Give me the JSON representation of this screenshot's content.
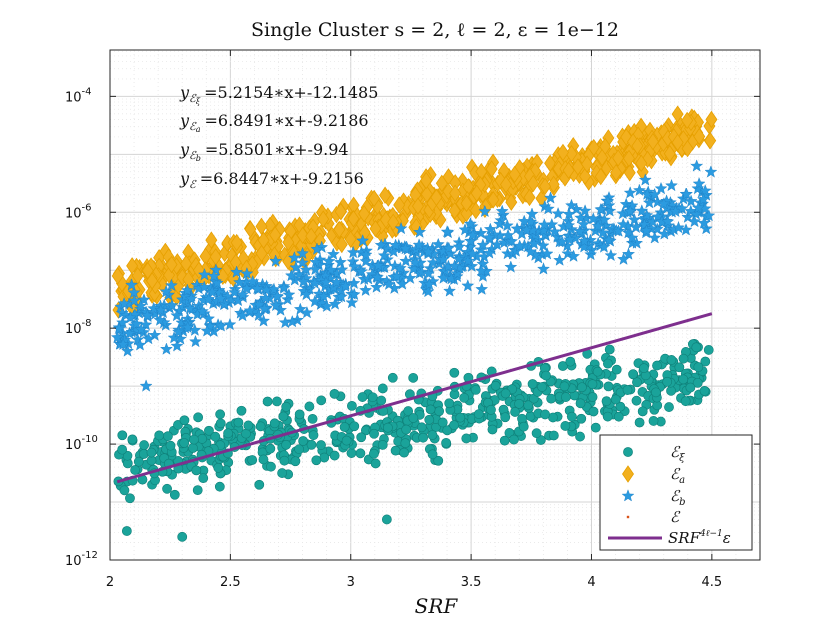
{
  "chart_data": {
    "type": "scatter",
    "title": "Single Cluster s = 2, ℓ = 2, ε = 1e−12",
    "xlabel": "SRF",
    "ylabel": "",
    "xlim": [
      2,
      4.7
    ],
    "ylim_log10": [
      -12,
      -3.2
    ],
    "y_scale": "log",
    "x_ticks": [
      2,
      2.5,
      3,
      3.5,
      4,
      4.5
    ],
    "x_tick_labels": [
      "2",
      "2.5",
      "3",
      "3.5",
      "4",
      "4.5"
    ],
    "y_ticks_log10": [
      -12,
      -10,
      -8,
      -6,
      -4
    ],
    "y_tick_labels": [
      {
        "base": "10",
        "exp": "-12"
      },
      {
        "base": "10",
        "exp": "-10"
      },
      {
        "base": "10",
        "exp": "-8"
      },
      {
        "base": "10",
        "exp": "-6"
      },
      {
        "base": "10",
        "exp": "-4"
      }
    ],
    "grid": true,
    "legend_position": "bottom-right",
    "fits": [
      {
        "label": "yₑξ =5.2154*x+-12.1485",
        "sub": "ξ",
        "text": "=5.2154∗x+-12.1485",
        "slope": 5.2154,
        "intercept": -12.1485
      },
      {
        "label": "yₑa =6.8491*x+-9.2186",
        "sub": "a",
        "text": "=6.8491∗x+-9.2186",
        "slope": 6.8491,
        "intercept": -9.2186
      },
      {
        "label": "yₑb =5.8501*x+-9.94",
        "sub": "b",
        "text": "=5.8501∗x+-9.94",
        "slope": 5.8501,
        "intercept": -9.94
      },
      {
        "label": "yₑ =6.8447*x+-9.2156",
        "sub": "",
        "text": "=6.8447∗x+-9.2156",
        "slope": 6.8447,
        "intercept": -9.2156
      }
    ],
    "series": [
      {
        "name": "E_xi",
        "legend": "ℰξ",
        "marker": "circle",
        "color": "#1aa39a",
        "x_range": [
          2.03,
          4.5
        ],
        "log10_start": -10.35,
        "log10_end": -8.8,
        "spread": 0.45,
        "count": 640,
        "outliers": [
          [
            2.3,
            -11.6
          ],
          [
            3.15,
            -11.3
          ],
          [
            2.07,
            -11.5
          ]
        ]
      },
      {
        "name": "E_a",
        "legend": "ℰa",
        "marker": "diamond",
        "color": "#f2b01e",
        "x_range": [
          2.03,
          4.5
        ],
        "log10_start": -7.35,
        "log10_end": -4.55,
        "spread": 0.3,
        "count": 620,
        "outliers": []
      },
      {
        "name": "E_b",
        "legend": "ℰb",
        "marker": "star",
        "color": "#2b9be0",
        "x_range": [
          2.03,
          4.5
        ],
        "log10_start": -7.95,
        "log10_end": -5.8,
        "spread": 0.4,
        "count": 620,
        "outliers": [
          [
            2.15,
            -9.0
          ]
        ]
      },
      {
        "name": "E",
        "legend": "ℰ",
        "marker": "dot",
        "color": "#d9541a",
        "x_range": [
          2.03,
          4.5
        ],
        "log10_start": -7.35,
        "log10_end": -4.55,
        "spread": 0.3,
        "count": 0,
        "outliers": []
      }
    ],
    "reference_line": {
      "name": "SRF^(4ℓ−1) ε",
      "legend_base": "SRF",
      "legend_exp": "4ℓ−1",
      "legend_tail": "ε",
      "color": "#7e2f8e",
      "x": [
        2.03,
        4.5
      ],
      "log10_y": [
        -10.65,
        -7.75
      ]
    }
  }
}
